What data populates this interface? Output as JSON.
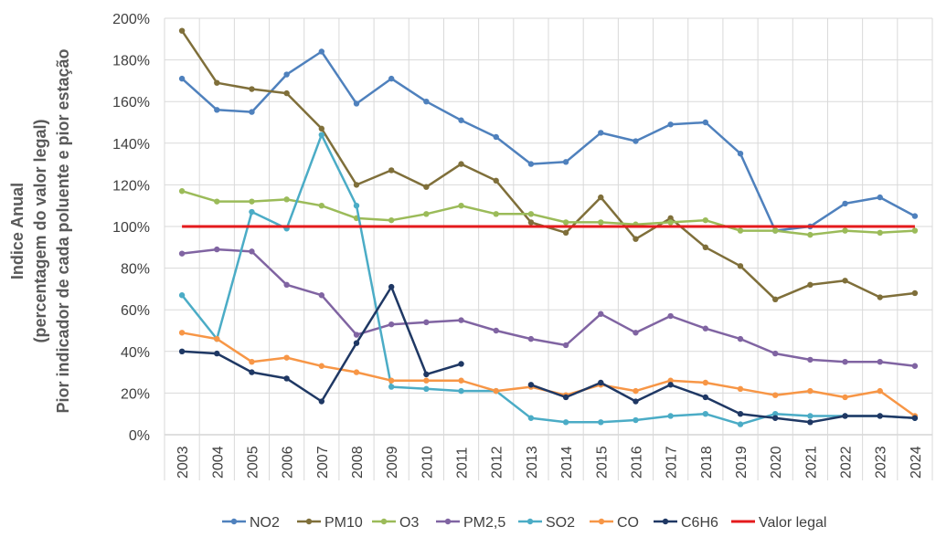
{
  "chart_data": {
    "type": "line",
    "title": "",
    "xlabel": "",
    "ylabel_lines": [
      "Indice Anual",
      "(percentagem do valor legal)",
      "Pior indicador de cada poluente e pior estação"
    ],
    "ylim": [
      0,
      200
    ],
    "ytick_step": 20,
    "ytick_labels": [
      "0%",
      "20%",
      "40%",
      "60%",
      "80%",
      "100%",
      "120%",
      "140%",
      "160%",
      "180%",
      "200%"
    ],
    "grid": true,
    "legend_position": "bottom",
    "categories": [
      "2003",
      "2004",
      "2005",
      "2006",
      "2007",
      "2008",
      "2009",
      "2010",
      "2011",
      "2012",
      "2013",
      "2014",
      "2015",
      "2016",
      "2017",
      "2018",
      "2019",
      "2020",
      "2021",
      "2022",
      "2023",
      "2024"
    ],
    "series": [
      {
        "name": "NO2",
        "color": "#4F81BD",
        "values": [
          171,
          156,
          155,
          173,
          184,
          159,
          171,
          160,
          151,
          143,
          130,
          131,
          145,
          141,
          149,
          150,
          135,
          98,
          100,
          111,
          114,
          105
        ]
      },
      {
        "name": "PM10",
        "color": "#7F6F3A",
        "values": [
          194,
          169,
          166,
          164,
          147,
          120,
          127,
          119,
          130,
          122,
          102,
          97,
          114,
          94,
          104,
          90,
          81,
          65,
          72,
          74,
          66,
          68
        ]
      },
      {
        "name": "O3",
        "color": "#9BBB59",
        "values": [
          117,
          112,
          112,
          113,
          110,
          104,
          103,
          106,
          110,
          106,
          106,
          102,
          102,
          101,
          102,
          103,
          98,
          98,
          96,
          98,
          97,
          98
        ]
      },
      {
        "name": "PM2,5",
        "color": "#8064A2",
        "values": [
          87,
          89,
          88,
          72,
          67,
          48,
          53,
          54,
          55,
          50,
          46,
          43,
          58,
          49,
          57,
          51,
          46,
          39,
          36,
          35,
          35,
          33
        ]
      },
      {
        "name": "SO2",
        "color": "#4BACC6",
        "values": [
          67,
          46,
          107,
          99,
          144,
          110,
          23,
          22,
          21,
          21,
          8,
          6,
          6,
          7,
          9,
          10,
          5,
          10,
          9,
          9,
          9,
          8
        ]
      },
      {
        "name": "CO",
        "color": "#F79646",
        "values": [
          49,
          46,
          35,
          37,
          33,
          30,
          26,
          26,
          26,
          21,
          23,
          19,
          24,
          21,
          26,
          25,
          22,
          19,
          21,
          18,
          21,
          9
        ]
      },
      {
        "name": "C6H6",
        "color": "#1F3864",
        "values": [
          40,
          39,
          30,
          27,
          16,
          44,
          71,
          29,
          34,
          null,
          24,
          18,
          25,
          16,
          24,
          18,
          10,
          8,
          6,
          9,
          9,
          8
        ]
      },
      {
        "name": "Valor legal",
        "color": "#E41A1C",
        "values": [
          100,
          100,
          100,
          100,
          100,
          100,
          100,
          100,
          100,
          100,
          100,
          100,
          100,
          100,
          100,
          100,
          100,
          100,
          100,
          100,
          100,
          100
        ],
        "no_markers": true
      }
    ]
  }
}
